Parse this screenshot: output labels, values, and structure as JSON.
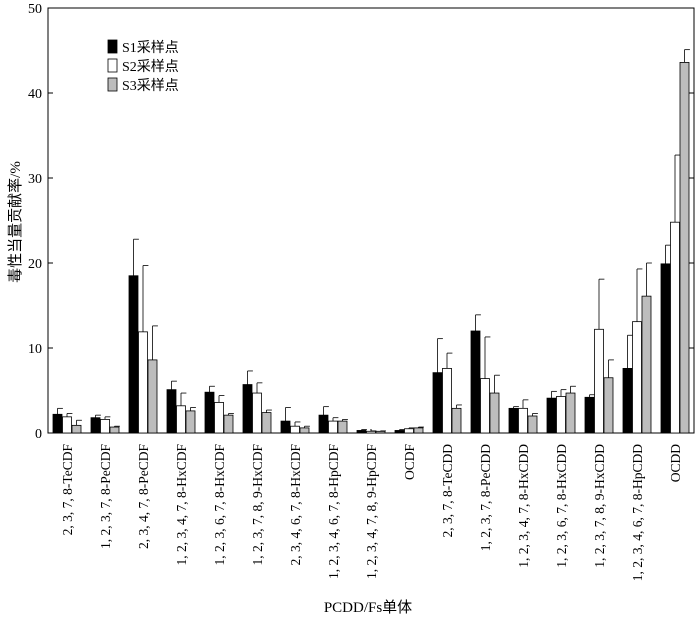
{
  "chart_data": {
    "type": "bar",
    "xlabel": "PCDD/Fs单体",
    "ylabel": "毒性当量贡献率/%",
    "ylim": [
      0,
      50
    ],
    "yticks": [
      0,
      10,
      20,
      30,
      40,
      50
    ],
    "grid": false,
    "legend_position": "top-left",
    "categories": [
      "2, 3, 7, 8-TeCDF",
      "1, 2, 3, 7, 8-PeCDF",
      "2, 3, 4, 7, 8-PeCDF",
      "1, 2, 3, 4, 7, 8-HxCDF",
      "1, 2, 3, 6, 7, 8-HxCDF",
      "1, 2, 3, 7, 8, 9-HxCDF",
      "2, 3, 4, 6, 7, 8-HxCDF",
      "1, 2, 3, 4, 6, 7, 8-HpCDF",
      "1, 2, 3, 4, 7, 8, 9-HpCDF",
      "OCDF",
      "2, 3, 7, 8-TeCDD",
      "1, 2, 3, 7, 8-PeCDD",
      "1, 2, 3, 4, 7, 8-HxCDD",
      "1, 2, 3, 6, 7, 8-HxCDD",
      "1, 2, 3, 7, 8, 9-HxCDD",
      "1, 2, 3, 4, 6, 7, 8-HpCDD",
      "OCDD"
    ],
    "series": [
      {
        "name": "S1采样点",
        "color": "#000000",
        "values": [
          2.2,
          1.8,
          18.5,
          5.1,
          4.8,
          5.7,
          1.4,
          2.1,
          0.3,
          0.3,
          7.1,
          12.0,
          2.9,
          4.1,
          4.2,
          7.6,
          19.9
        ],
        "errors": [
          0.7,
          0.3,
          4.3,
          1.0,
          0.7,
          1.6,
          1.6,
          1.0,
          0.1,
          0.1,
          4.0,
          1.9,
          0.2,
          0.8,
          0.3,
          3.9,
          2.2
        ]
      },
      {
        "name": "S2采样点",
        "color": "#ffffff",
        "values": [
          1.9,
          1.6,
          11.9,
          3.2,
          3.6,
          4.7,
          0.8,
          1.4,
          0.2,
          0.5,
          7.6,
          6.4,
          2.9,
          4.3,
          12.2,
          13.1,
          24.8
        ],
        "errors": [
          0.4,
          0.3,
          7.8,
          1.5,
          0.8,
          1.2,
          0.5,
          0.4,
          0.05,
          0.1,
          1.8,
          4.9,
          1.0,
          0.8,
          5.9,
          6.2,
          7.9
        ]
      },
      {
        "name": "S3采样点",
        "color": "#bdbdbd",
        "values": [
          0.9,
          0.7,
          8.6,
          2.6,
          2.1,
          2.4,
          0.6,
          1.4,
          0.2,
          0.6,
          2.9,
          4.7,
          2.0,
          4.7,
          6.5,
          16.1,
          43.6
        ],
        "errors": [
          0.6,
          0.1,
          4.0,
          0.4,
          0.2,
          0.3,
          0.2,
          0.2,
          0.05,
          0.1,
          0.4,
          2.1,
          0.3,
          0.8,
          2.1,
          3.9,
          1.5
        ]
      }
    ]
  }
}
